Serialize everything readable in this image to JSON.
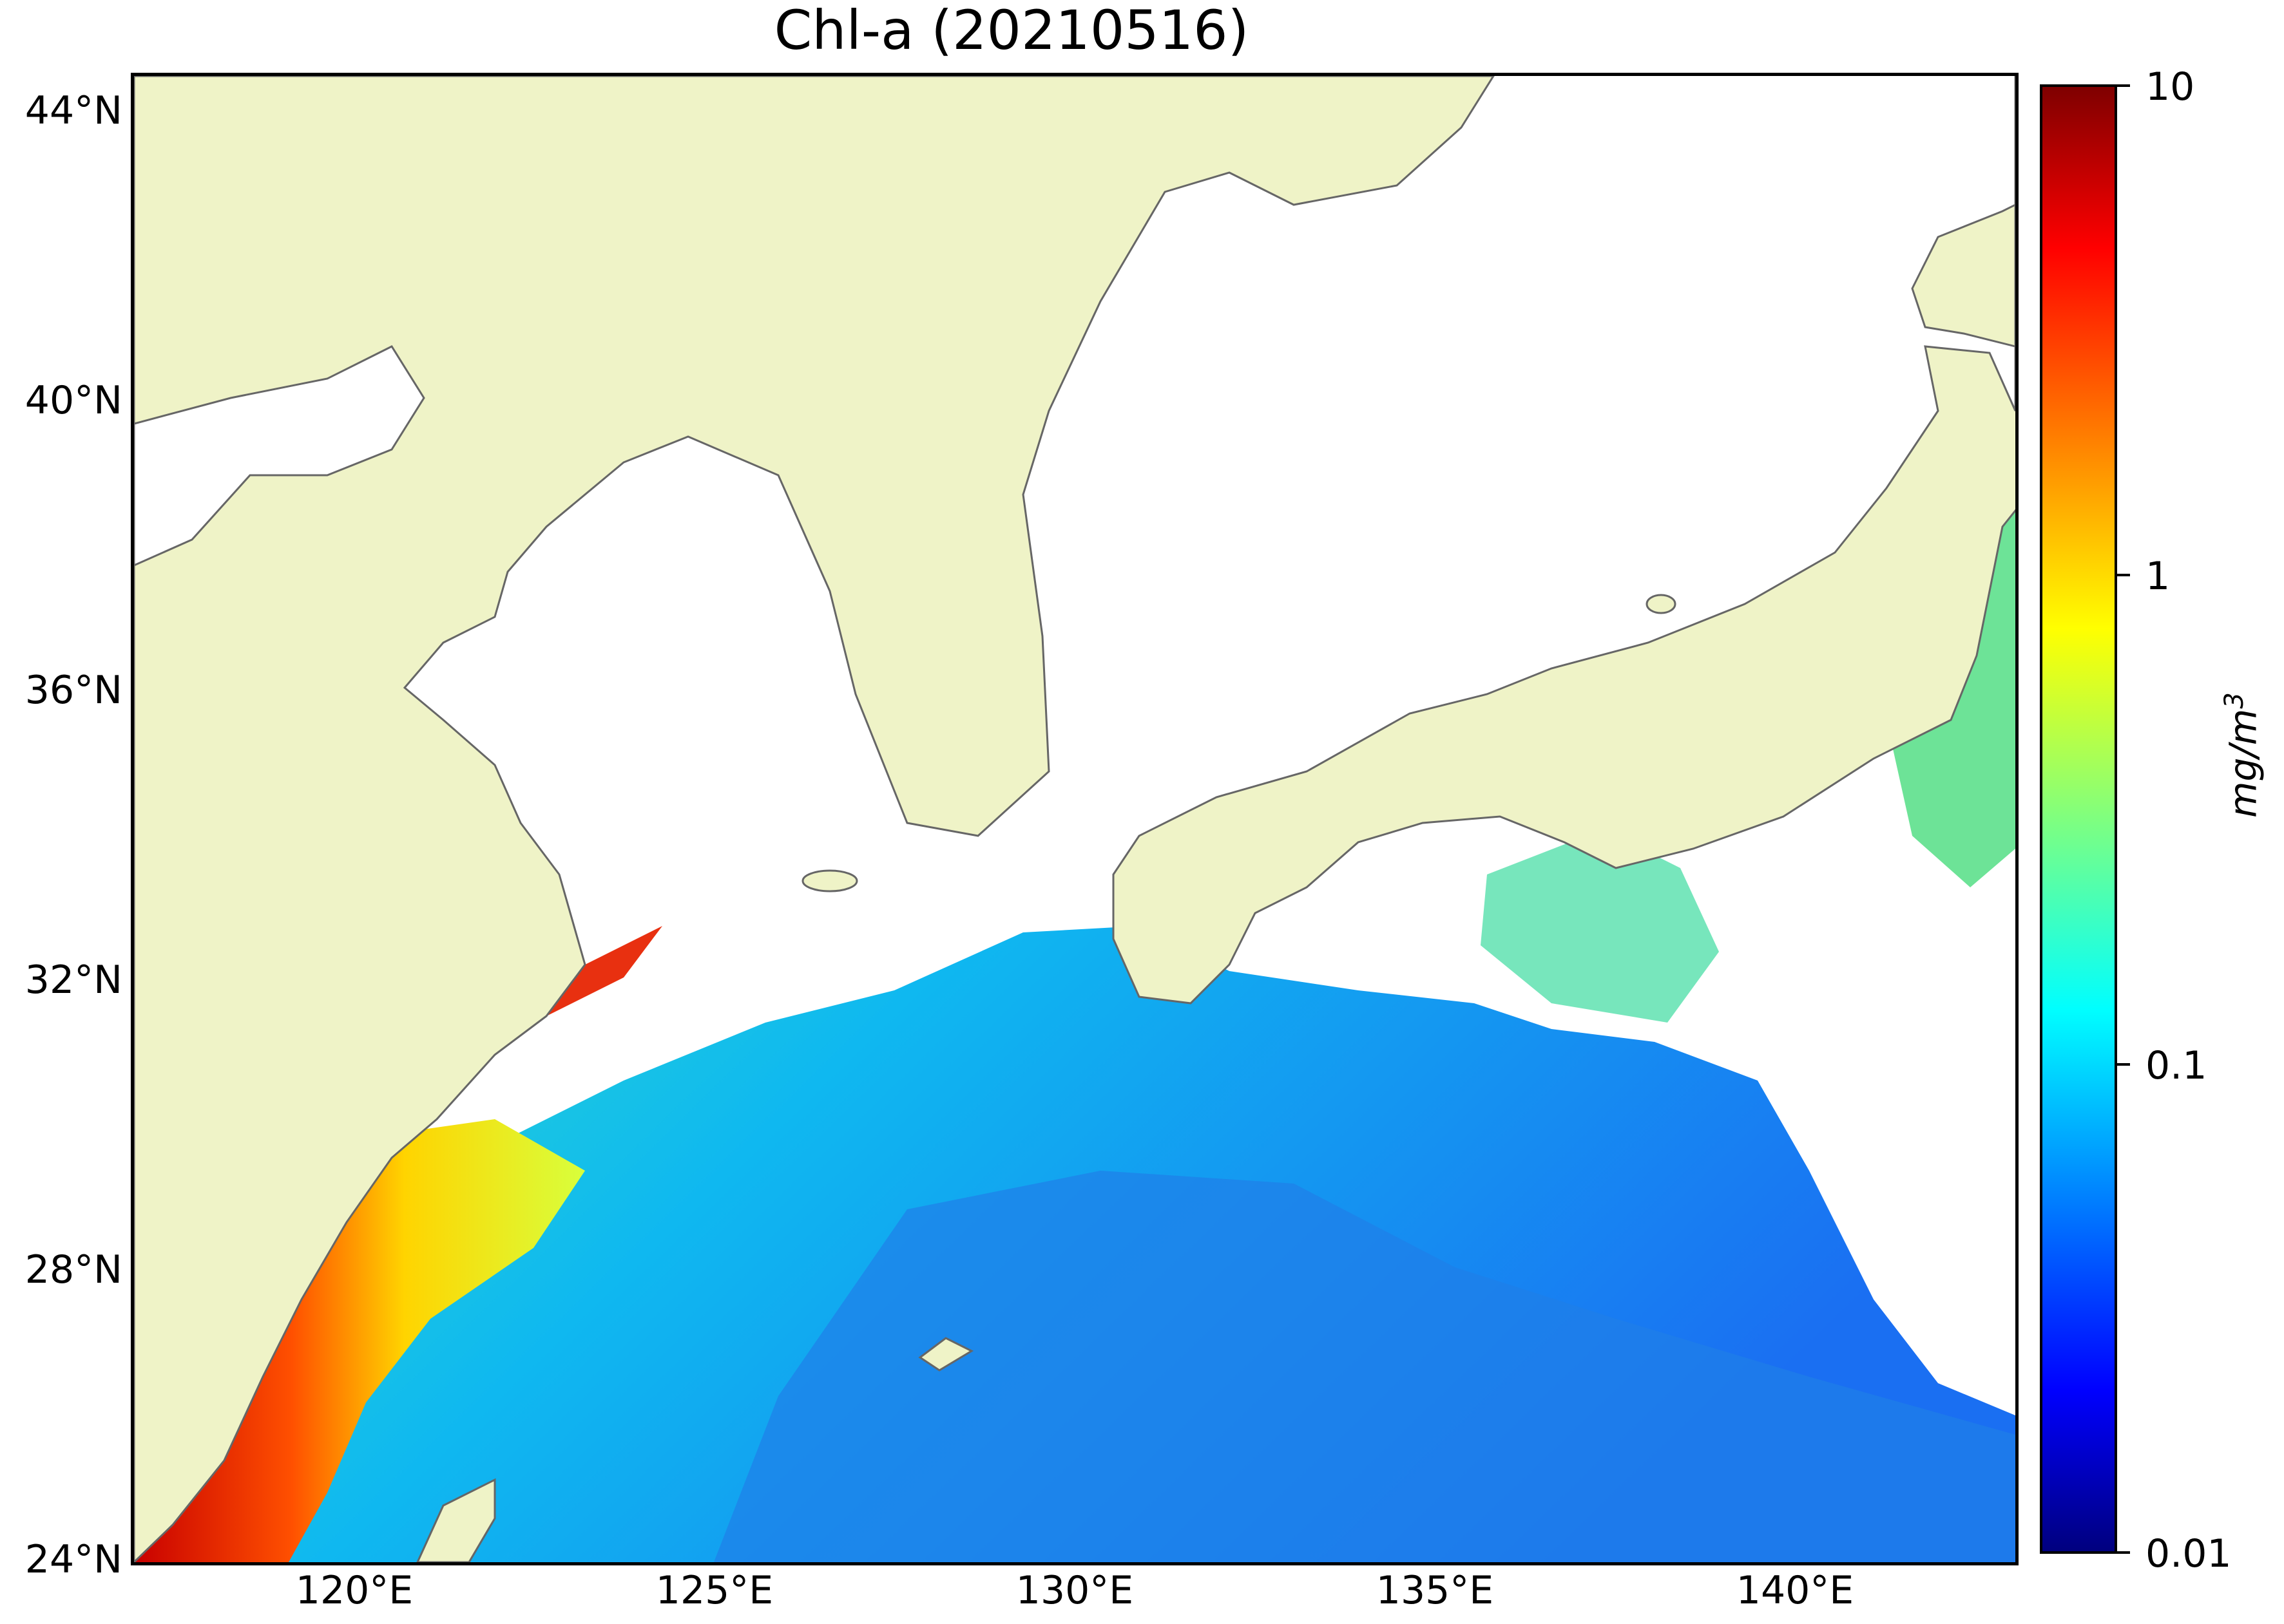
{
  "title": "Chl-a (20210516)",
  "axes": {
    "lat_ticks": [
      "44°N",
      "40°N",
      "36°N",
      "32°N",
      "28°N",
      "24°N"
    ],
    "lon_ticks": [
      "120°E",
      "125°E",
      "130°E",
      "135°E",
      "140°E"
    ],
    "lat_range": [
      24,
      44.5
    ],
    "lon_range": [
      116.8,
      143
    ]
  },
  "colorbar": {
    "ticks": [
      "10",
      "1",
      "0.1",
      "0.01"
    ],
    "unit_base": "mg/m",
    "unit_sup": "3",
    "scale": "log",
    "range": [
      0.01,
      10
    ],
    "colormap": "jet"
  },
  "colors": {
    "land": "#eff3c7",
    "coast": "#666666",
    "no_data": "#ffffff"
  }
}
